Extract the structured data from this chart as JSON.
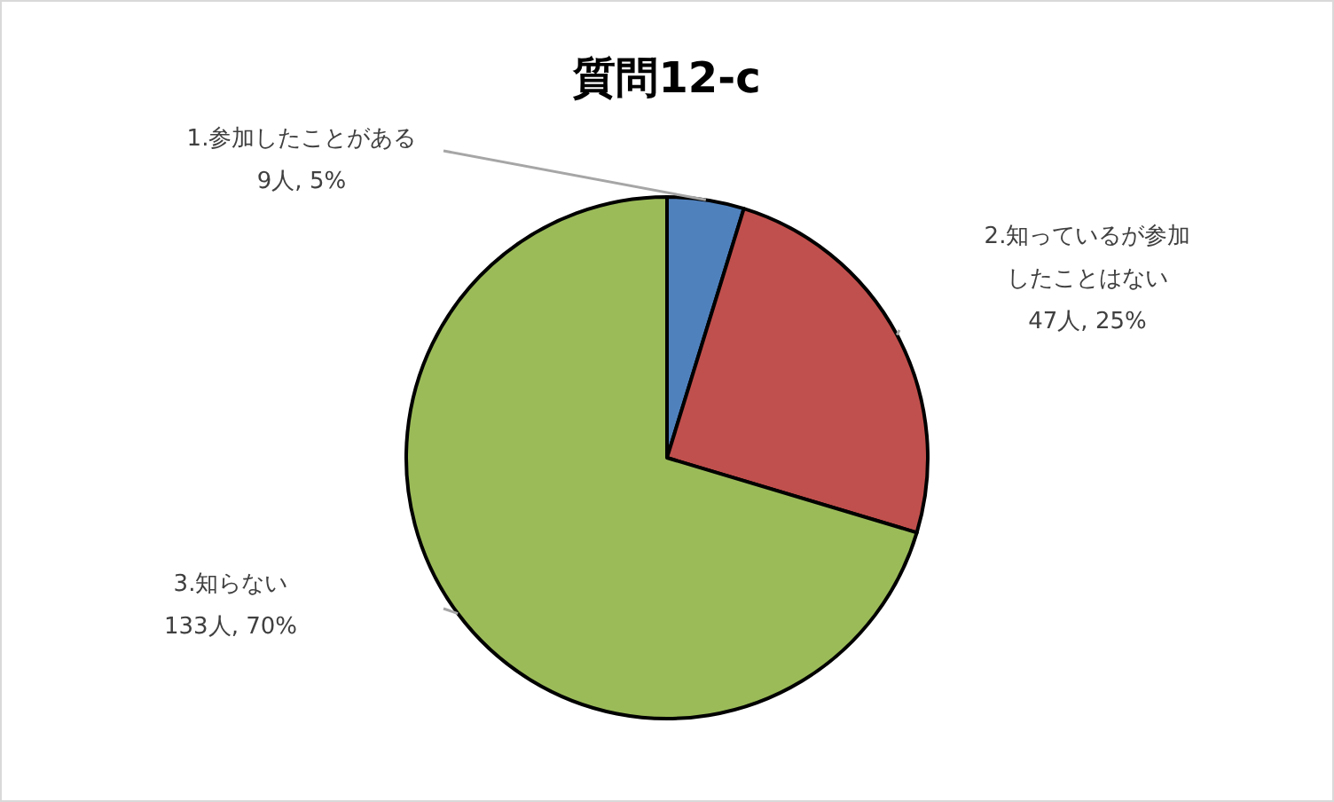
{
  "chart_data": {
    "type": "pie",
    "title": "質問12-c",
    "categories": [
      "1.参加したことがある",
      "2.知っているが参加したことはない",
      "3.知らない"
    ],
    "values": [
      9,
      47,
      133
    ],
    "colors": [
      "#4f81bd",
      "#c0504d",
      "#9bbb59"
    ],
    "value_labels": [
      "9人, 5%",
      "47人, 25%",
      "133人, 70%"
    ],
    "legend": false
  }
}
